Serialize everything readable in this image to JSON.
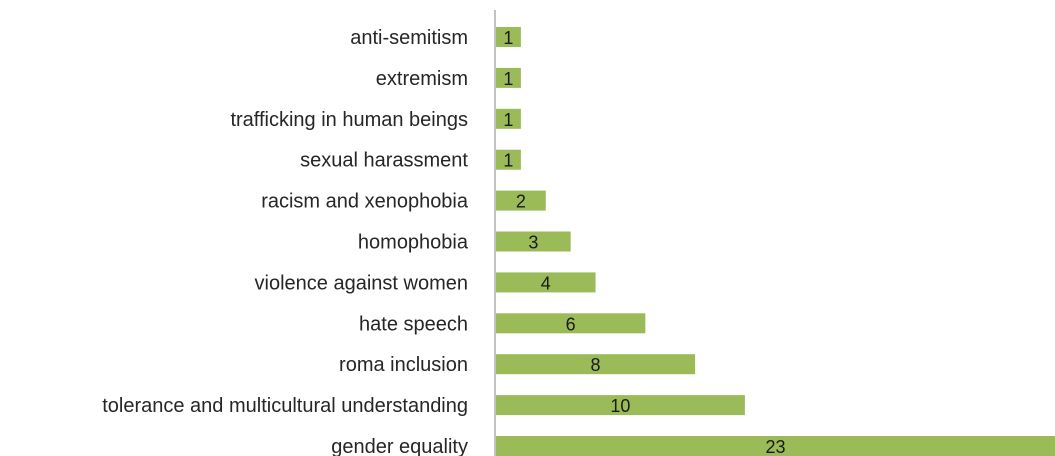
{
  "chart_data": {
    "type": "bar",
    "orientation": "horizontal",
    "categories": [
      "anti-semitism",
      "extremism",
      "trafficking in human beings",
      "sexual harassment",
      "racism and xenophobia",
      "homophobia",
      "violence against women",
      "hate speech",
      "roma inclusion",
      "tolerance and multicultural understanding",
      "gender equality"
    ],
    "values": [
      1,
      1,
      1,
      1,
      2,
      3,
      4,
      6,
      8,
      10,
      23
    ],
    "data_labels": [
      "1",
      "1",
      "1",
      "1",
      "2",
      "3",
      "4",
      "6",
      "8",
      "10",
      "23"
    ],
    "xlim": [
      0,
      22.5
    ],
    "bar_color": "#9bbb59",
    "axis_color": "#868686",
    "grid": false,
    "legend": "none"
  }
}
